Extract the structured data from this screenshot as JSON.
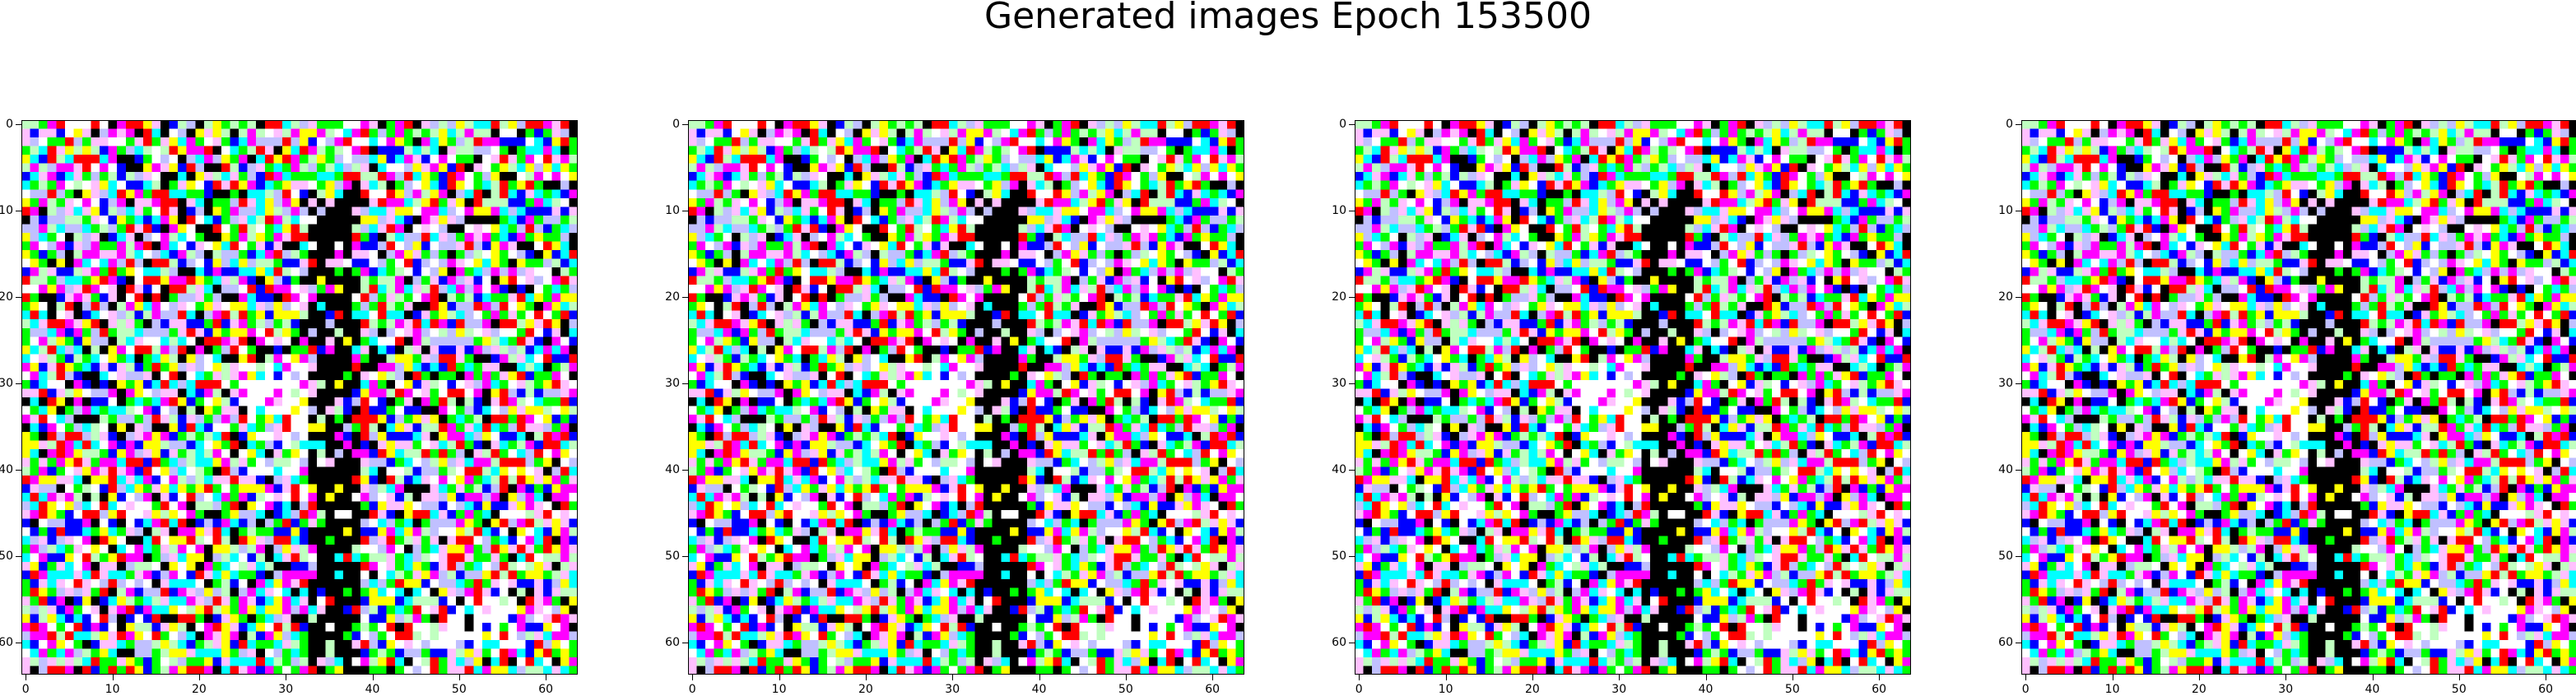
{
  "title": "Generated images Epoch 153500",
  "panels": [
    {
      "name": "generated-image-1"
    },
    {
      "name": "generated-image-2"
    },
    {
      "name": "generated-image-3"
    },
    {
      "name": "generated-image-4"
    }
  ],
  "axes": {
    "x_ticks": [
      "0",
      "10",
      "20",
      "30",
      "40",
      "50",
      "60"
    ],
    "y_ticks": [
      "0",
      "10",
      "20",
      "30",
      "40",
      "50",
      "60"
    ],
    "x_range": [
      0,
      64
    ],
    "y_range": [
      0,
      64
    ]
  },
  "image_grid": {
    "width": 64,
    "height": 64
  },
  "palette": [
    "#ffffff",
    "#000000",
    "#ff0000",
    "#00ff00",
    "#0000ff",
    "#ffff00",
    "#00ffff",
    "#ff00ff",
    "#c0ffc0",
    "#ffc0ff",
    "#c0c0ff"
  ]
}
